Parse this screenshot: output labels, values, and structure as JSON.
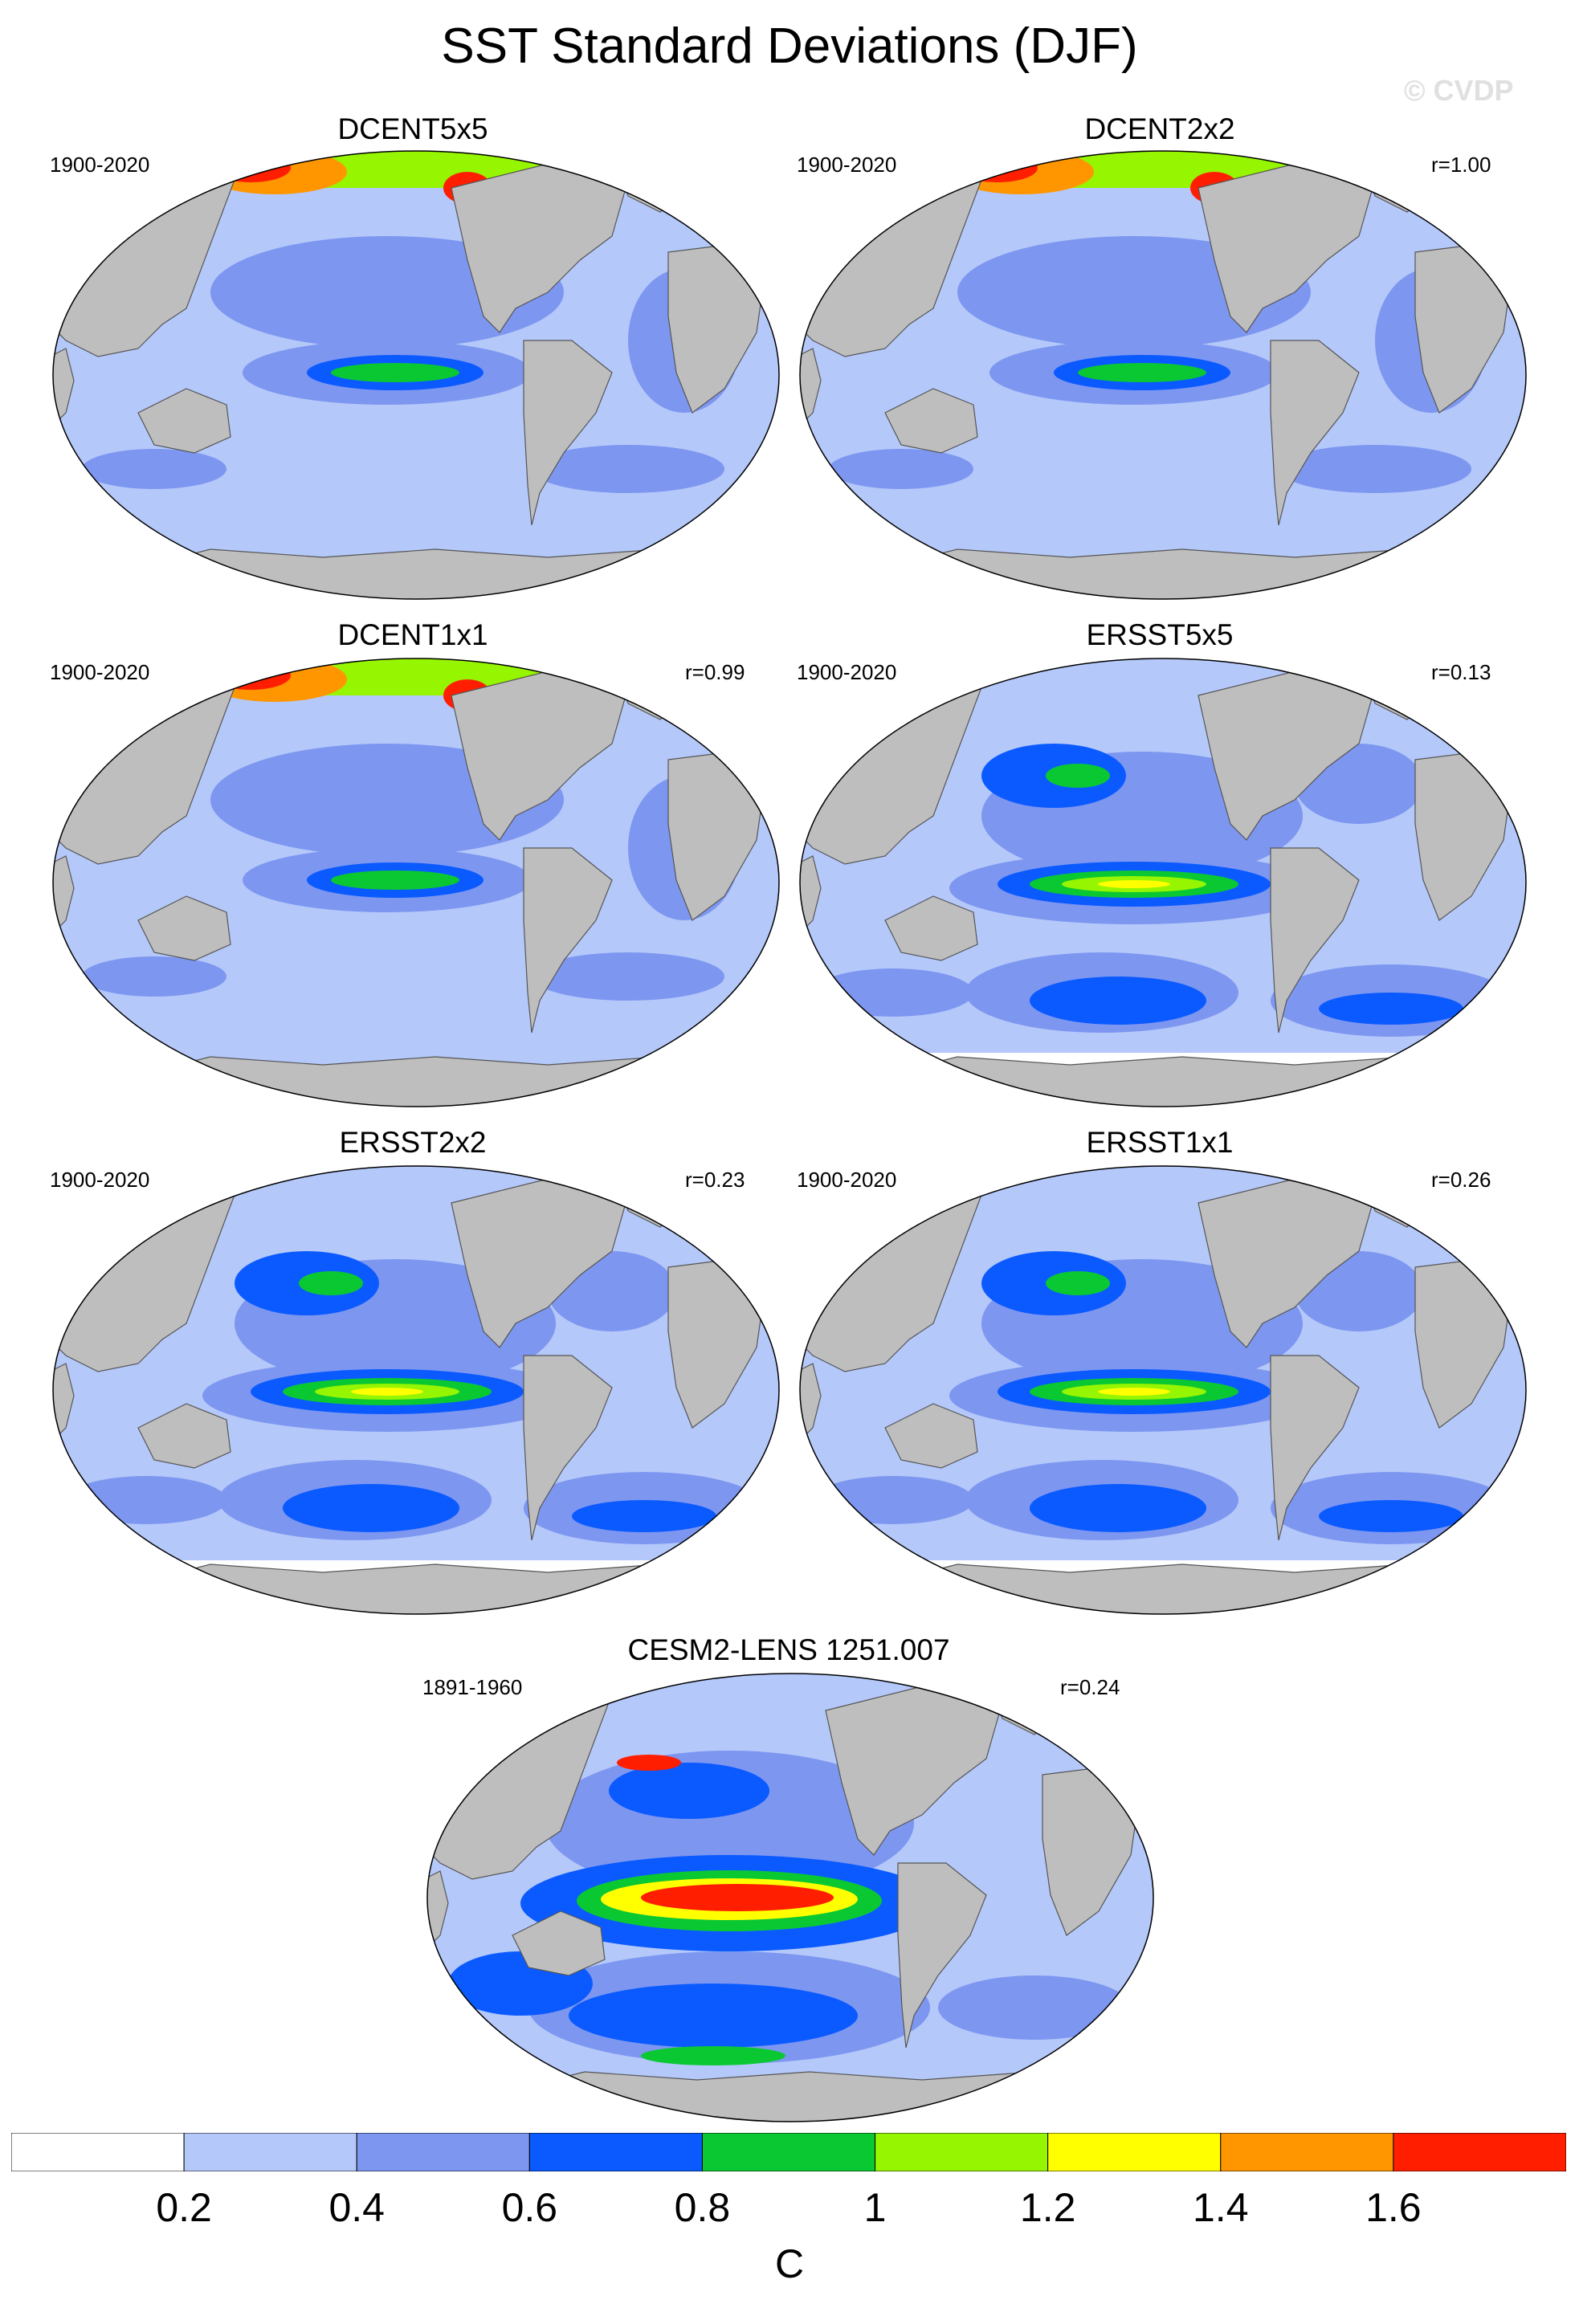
{
  "title": "SST Standard Deviations (DJF)",
  "watermark": "© CVDP",
  "panels": [
    {
      "name": "DCENT5x5",
      "period": "1900-2020",
      "r": "",
      "mode": "dcent"
    },
    {
      "name": "DCENT2x2",
      "period": "1900-2020",
      "r": "r=1.00",
      "mode": "dcent"
    },
    {
      "name": "DCENT1x1",
      "period": "1900-2020",
      "r": "r=0.99",
      "mode": "dcent"
    },
    {
      "name": "ERSST5x5",
      "period": "1900-2020",
      "r": "r=0.13",
      "mode": "ersst"
    },
    {
      "name": "ERSST2x2",
      "period": "1900-2020",
      "r": "r=0.23",
      "mode": "ersst"
    },
    {
      "name": "ERSST1x1",
      "period": "1900-2020",
      "r": "r=0.26",
      "mode": "ersst"
    },
    {
      "name": "CESM2-LENS 1251.007",
      "period": "1891-1960",
      "r": "r=0.24",
      "mode": "cesm"
    }
  ],
  "colorbar": {
    "labels": [
      "0.2",
      "0.4",
      "0.6",
      "0.8",
      "1",
      "1.2",
      "1.4",
      "1.6"
    ],
    "colors": [
      "#ffffff",
      "#b4c8fa",
      "#7d96f0",
      "#0a5aff",
      "#0ac832",
      "#96f500",
      "#ffff00",
      "#ff9600",
      "#ff1e00"
    ],
    "unit": "C"
  },
  "map_colors": {
    "land": "#bebebe",
    "coast": "#555555"
  }
}
